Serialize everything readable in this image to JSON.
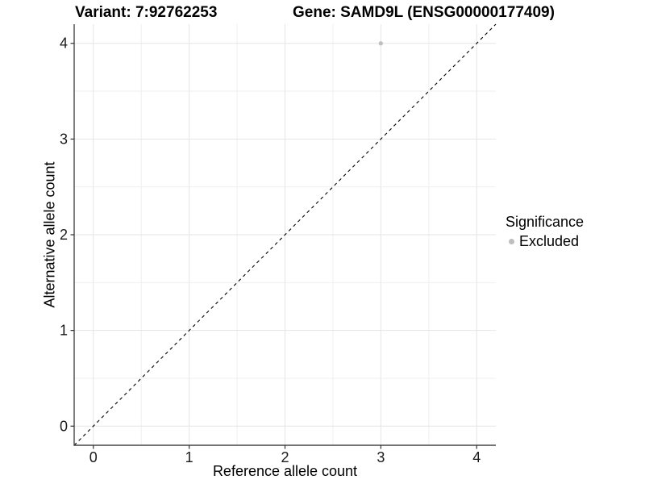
{
  "titles": {
    "variant": "Variant: 7:92762253",
    "gene": "Gene: SAMD9L (ENSG00000177409)"
  },
  "chart_data": {
    "type": "scatter",
    "title_left": "Variant: 7:92762253",
    "title_right": "Gene: SAMD9L (ENSG00000177409)",
    "xlabel": "Reference allele count",
    "ylabel": "Alternative allele count",
    "xlim": [
      -0.2,
      4.2
    ],
    "ylim": [
      -0.2,
      4.2
    ],
    "xticks": [
      0,
      1,
      2,
      3,
      4
    ],
    "yticks": [
      0,
      1,
      2,
      3,
      4
    ],
    "xticks_minor": [
      0.5,
      1.5,
      2.5,
      3.5
    ],
    "yticks_minor": [
      0.5,
      1.5,
      2.5,
      3.5
    ],
    "grid": true,
    "identity_line": {
      "style": "dashed",
      "from": [
        -0.2,
        -0.2
      ],
      "to": [
        4.2,
        4.2
      ],
      "color": "#000000"
    },
    "points": [
      {
        "x": 3,
        "y": 4,
        "series": "Excluded"
      }
    ],
    "legend": {
      "position": "right",
      "title": "Significance",
      "items": [
        {
          "label": "Excluded",
          "color": "#bebebe"
        }
      ]
    },
    "colors": {
      "point_excluded": "#bebebe",
      "grid_major": "#e5e5e5",
      "grid_minor": "#efefef",
      "axis_line": "#474747",
      "tick_mark": "#333333",
      "text": "#000000"
    }
  }
}
